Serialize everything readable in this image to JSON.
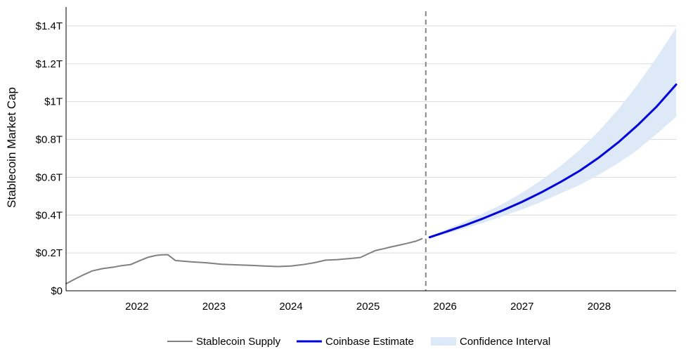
{
  "chart_data": {
    "type": "line",
    "ylabel": "Stablecoin Market Cap",
    "xlim": [
      2021.08,
      2029.0
    ],
    "ylim": [
      0,
      1.5
    ],
    "x_ticks": [
      {
        "value": 2022,
        "label": "2022"
      },
      {
        "value": 2023,
        "label": "2023"
      },
      {
        "value": 2024,
        "label": "2024"
      },
      {
        "value": 2025,
        "label": "2025"
      },
      {
        "value": 2026,
        "label": "2026"
      },
      {
        "value": 2027,
        "label": "2027"
      },
      {
        "value": 2028,
        "label": "2028"
      }
    ],
    "y_ticks": [
      {
        "value": 0,
        "label": "$0"
      },
      {
        "value": 0.2,
        "label": "$0.2T"
      },
      {
        "value": 0.4,
        "label": "$0.4T"
      },
      {
        "value": 0.6,
        "label": "$0.6T"
      },
      {
        "value": 0.8,
        "label": "$0.8T"
      },
      {
        "value": 1.0,
        "label": "$1T"
      },
      {
        "value": 1.2,
        "label": "$1.2T"
      },
      {
        "value": 1.4,
        "label": "$1.4T"
      }
    ],
    "grid": "horizontal",
    "legend_position": "bottom",
    "divider_x": 2025.75,
    "series": [
      {
        "name": "Stablecoin Supply",
        "kind": "line",
        "color": "#808080",
        "x": [
          2021.08,
          2021.2,
          2021.3,
          2021.42,
          2021.55,
          2021.7,
          2021.8,
          2021.92,
          2022.05,
          2022.15,
          2022.25,
          2022.33,
          2022.4,
          2022.5,
          2022.7,
          2022.9,
          2023.1,
          2023.3,
          2023.5,
          2023.65,
          2023.83,
          2024.0,
          2024.15,
          2024.3,
          2024.45,
          2024.6,
          2024.75,
          2024.9,
          2025.0,
          2025.1,
          2025.2,
          2025.3,
          2025.4,
          2025.5,
          2025.62,
          2025.7
        ],
        "values": [
          0.037,
          0.063,
          0.083,
          0.105,
          0.117,
          0.125,
          0.133,
          0.139,
          0.162,
          0.178,
          0.187,
          0.19,
          0.191,
          0.16,
          0.153,
          0.148,
          0.14,
          0.137,
          0.134,
          0.131,
          0.128,
          0.131,
          0.138,
          0.148,
          0.162,
          0.165,
          0.17,
          0.176,
          0.195,
          0.213,
          0.222,
          0.232,
          0.241,
          0.25,
          0.262,
          0.275
        ]
      },
      {
        "name": "Coinbase Estimate",
        "kind": "line",
        "color": "#0000dd",
        "x": [
          2025.8,
          2026.0,
          2026.25,
          2026.5,
          2026.75,
          2027.0,
          2027.25,
          2027.5,
          2027.75,
          2028.0,
          2028.25,
          2028.5,
          2028.75,
          2029.0
        ],
        "values": [
          0.283,
          0.31,
          0.345,
          0.383,
          0.425,
          0.47,
          0.52,
          0.575,
          0.635,
          0.705,
          0.785,
          0.875,
          0.975,
          1.09
        ]
      },
      {
        "name": "Confidence Interval",
        "kind": "band",
        "color": "#dde9f7",
        "x": [
          2025.8,
          2026.0,
          2026.25,
          2026.5,
          2026.75,
          2027.0,
          2027.25,
          2027.5,
          2027.75,
          2028.0,
          2028.25,
          2028.5,
          2028.75,
          2029.0
        ],
        "lower": [
          0.278,
          0.3,
          0.33,
          0.36,
          0.395,
          0.43,
          0.47,
          0.515,
          0.56,
          0.615,
          0.675,
          0.745,
          0.83,
          0.92
        ],
        "upper": [
          0.288,
          0.322,
          0.365,
          0.41,
          0.46,
          0.518,
          0.585,
          0.66,
          0.745,
          0.845,
          0.96,
          1.09,
          1.235,
          1.39
        ]
      }
    ]
  }
}
